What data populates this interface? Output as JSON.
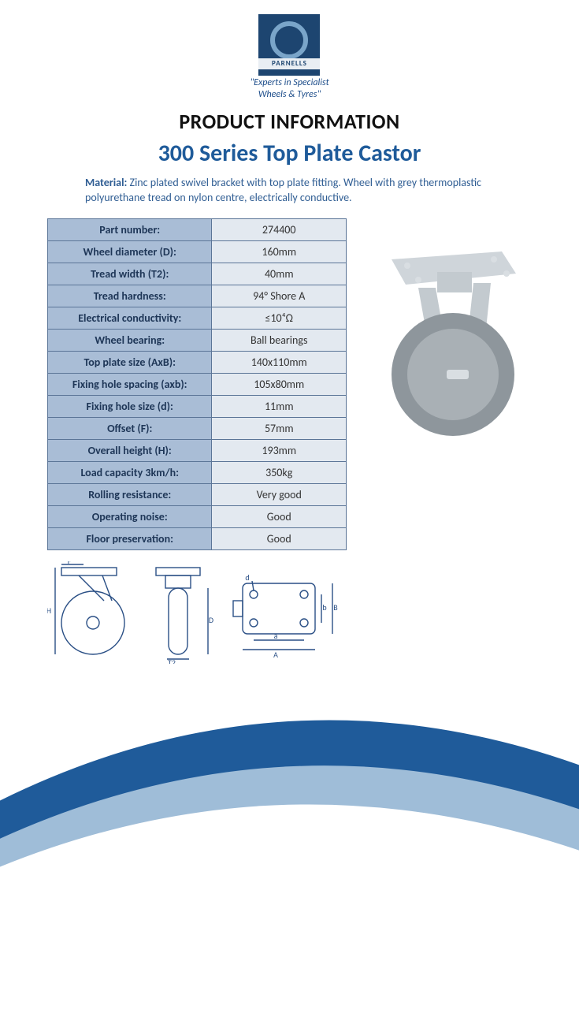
{
  "brand": {
    "name": "PARNELLS",
    "tagline_line1": "\"Experts in Specialist",
    "tagline_line2": "Wheels & Tyres\"",
    "badge_bg": "#1d4570",
    "ring_color": "#7aa5c9",
    "band_bg": "#e9eef3",
    "tagline_color": "#1d4d8a"
  },
  "titles": {
    "heading1": "PRODUCT INFORMATION",
    "heading2": "300 Series Top Plate Castor",
    "heading2_color": "#1f5b9a",
    "heading2_fontsize": 30
  },
  "material": {
    "label": "Material:",
    "text": " Zinc plated swivel bracket with top plate fitting. Wheel with grey thermoplastic polyurethane tread on nylon centre, electrically conductive.",
    "text_color": "#2f5d93",
    "fontsize": 14
  },
  "spec_table": {
    "header_bg": "#a9bdd6",
    "value_bg": "#e3e9f0",
    "border_color": "#5b7597",
    "label_text_color": "#1e3657",
    "value_text_color": "#333333",
    "rows": [
      {
        "label": "Part number:",
        "value": "274400"
      },
      {
        "label": "Wheel diameter (D):",
        "value": "160mm"
      },
      {
        "label": "Tread width (T2):",
        "value": "40mm"
      },
      {
        "label": "Tread hardness:",
        "value": "94° Shore A"
      },
      {
        "label": "Electrical conductivity:",
        "value": "≤10⁴Ω"
      },
      {
        "label": "Wheel bearing:",
        "value": "Ball bearings"
      },
      {
        "label": "Top plate size (AxB):",
        "value": "140x110mm"
      },
      {
        "label": "Fixing hole spacing (axb):",
        "value": "105x80mm"
      },
      {
        "label": "Fixing hole size (d):",
        "value": "11mm"
      },
      {
        "label": "Offset (F):",
        "value": "57mm"
      },
      {
        "label": "Overall height (H):",
        "value": "193mm"
      },
      {
        "label": "Load capacity 3km/h:",
        "value": "350kg"
      },
      {
        "label": "Rolling resistance:",
        "value": "Very good"
      },
      {
        "label": "Operating noise:",
        "value": "Good"
      },
      {
        "label": "Floor preservation:",
        "value": "Good"
      }
    ]
  },
  "product_image": {
    "plate_color": "#cfd5da",
    "bracket_color": "#c3cacf",
    "wheel_tread": "#8e969c",
    "wheel_hub": "#a9b0b5",
    "bolt_color": "#d9dee2"
  },
  "diagrams": {
    "stroke": "#2a4f85",
    "labels": {
      "F": "F",
      "H": "H",
      "T2": "T2",
      "D": "D",
      "d": "d",
      "a": "a",
      "A": "A",
      "b": "b",
      "B": "B"
    }
  },
  "footer_swoosh": {
    "outer_color": "#1f5b9a",
    "inner_color": "#9fbdd8"
  }
}
